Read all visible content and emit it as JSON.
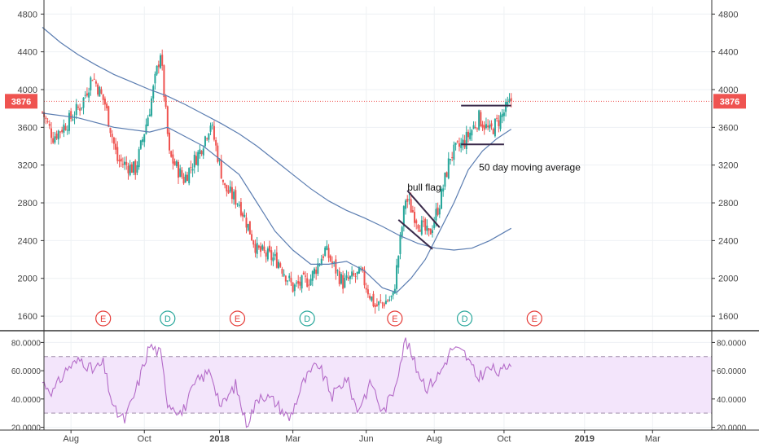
{
  "chart_data": {
    "type": "candlestick",
    "price_panel": {
      "yticks": [
        1600,
        2000,
        2400,
        2800,
        3200,
        3600,
        4000,
        4400,
        4800
      ],
      "ylim": [
        1480,
        4880
      ],
      "last_price": 3876,
      "last_price_label": "3876",
      "keypoints": [
        {
          "t": 0,
          "p": 3760
        },
        {
          "t": 6,
          "p": 3500
        },
        {
          "t": 14,
          "p": 3650
        },
        {
          "t": 22,
          "p": 3850
        },
        {
          "t": 28,
          "p": 4150
        },
        {
          "t": 35,
          "p": 3850
        },
        {
          "t": 42,
          "p": 3250
        },
        {
          "t": 52,
          "p": 3150
        },
        {
          "t": 60,
          "p": 3800
        },
        {
          "t": 66,
          "p": 4400
        },
        {
          "t": 71,
          "p": 3300
        },
        {
          "t": 79,
          "p": 3050
        },
        {
          "t": 88,
          "p": 3350
        },
        {
          "t": 94,
          "p": 3650
        },
        {
          "t": 102,
          "p": 2950
        },
        {
          "t": 110,
          "p": 2800
        },
        {
          "t": 120,
          "p": 2300
        },
        {
          "t": 132,
          "p": 2180
        },
        {
          "t": 140,
          "p": 1900
        },
        {
          "t": 150,
          "p": 2000
        },
        {
          "t": 158,
          "p": 2300
        },
        {
          "t": 168,
          "p": 1950
        },
        {
          "t": 178,
          "p": 2050
        },
        {
          "t": 186,
          "p": 1700
        },
        {
          "t": 196,
          "p": 1800
        },
        {
          "t": 203,
          "p": 2850
        },
        {
          "t": 210,
          "p": 2600
        },
        {
          "t": 216,
          "p": 2450
        },
        {
          "t": 222,
          "p": 2800
        },
        {
          "t": 228,
          "p": 3300
        },
        {
          "t": 236,
          "p": 3450
        },
        {
          "t": 244,
          "p": 3700
        },
        {
          "t": 250,
          "p": 3550
        },
        {
          "t": 256,
          "p": 3700
        },
        {
          "t": 262,
          "p": 3880
        }
      ],
      "ma50": [
        {
          "t": 0,
          "p": 3750
        },
        {
          "t": 20,
          "p": 3700
        },
        {
          "t": 40,
          "p": 3600
        },
        {
          "t": 60,
          "p": 3550
        },
        {
          "t": 70,
          "p": 3600
        },
        {
          "t": 80,
          "p": 3500
        },
        {
          "t": 90,
          "p": 3400
        },
        {
          "t": 100,
          "p": 3250
        },
        {
          "t": 110,
          "p": 3100
        },
        {
          "t": 120,
          "p": 2800
        },
        {
          "t": 130,
          "p": 2500
        },
        {
          "t": 140,
          "p": 2300
        },
        {
          "t": 150,
          "p": 2150
        },
        {
          "t": 160,
          "p": 2150
        },
        {
          "t": 170,
          "p": 2180
        },
        {
          "t": 180,
          "p": 2080
        },
        {
          "t": 190,
          "p": 1900
        },
        {
          "t": 198,
          "p": 1850
        },
        {
          "t": 206,
          "p": 2000
        },
        {
          "t": 214,
          "p": 2200
        },
        {
          "t": 222,
          "p": 2500
        },
        {
          "t": 230,
          "p": 2800
        },
        {
          "t": 238,
          "p": 3150
        },
        {
          "t": 246,
          "p": 3350
        },
        {
          "t": 254,
          "p": 3480
        },
        {
          "t": 262,
          "p": 3580
        }
      ],
      "ma200": [
        {
          "t": 0,
          "p": 4660
        },
        {
          "t": 10,
          "p": 4500
        },
        {
          "t": 20,
          "p": 4370
        },
        {
          "t": 30,
          "p": 4260
        },
        {
          "t": 40,
          "p": 4160
        },
        {
          "t": 50,
          "p": 4080
        },
        {
          "t": 60,
          "p": 4000
        },
        {
          "t": 70,
          "p": 3930
        },
        {
          "t": 80,
          "p": 3840
        },
        {
          "t": 90,
          "p": 3740
        },
        {
          "t": 100,
          "p": 3640
        },
        {
          "t": 110,
          "p": 3530
        },
        {
          "t": 120,
          "p": 3400
        },
        {
          "t": 130,
          "p": 3250
        },
        {
          "t": 140,
          "p": 3100
        },
        {
          "t": 150,
          "p": 2950
        },
        {
          "t": 160,
          "p": 2820
        },
        {
          "t": 170,
          "p": 2720
        },
        {
          "t": 180,
          "p": 2640
        },
        {
          "t": 190,
          "p": 2550
        },
        {
          "t": 200,
          "p": 2450
        },
        {
          "t": 210,
          "p": 2370
        },
        {
          "t": 220,
          "p": 2320
        },
        {
          "t": 230,
          "p": 2300
        },
        {
          "t": 240,
          "p": 2320
        },
        {
          "t": 250,
          "p": 2400
        },
        {
          "t": 262,
          "p": 2530
        }
      ],
      "event_markers": [
        {
          "label": "E",
          "t": 34,
          "kind": "earnings",
          "color": "#e53935"
        },
        {
          "label": "D",
          "t": 70,
          "kind": "dividend",
          "color": "#26a69a"
        },
        {
          "label": "E",
          "t": 109,
          "kind": "earnings",
          "color": "#e53935"
        },
        {
          "label": "D",
          "t": 148,
          "kind": "dividend",
          "color": "#26a69a"
        },
        {
          "label": "E",
          "t": 197,
          "kind": "earnings",
          "color": "#e53935"
        },
        {
          "label": "D",
          "t": 236,
          "kind": "dividend",
          "color": "#26a69a"
        },
        {
          "label": "E",
          "t": 275,
          "kind": "earnings",
          "color": "#e53935"
        }
      ],
      "annotations": [
        {
          "text": "bull flag",
          "t": 204,
          "p": 2930
        },
        {
          "text": "50 day moving average",
          "t": 244,
          "p": 3140
        }
      ],
      "trendlines": [
        {
          "t1": 204,
          "p1": 2930,
          "t2": 222,
          "p2": 2540
        },
        {
          "t1": 199,
          "p1": 2620,
          "t2": 218,
          "p2": 2310
        },
        {
          "t1": 234,
          "p1": 3830,
          "t2": 262,
          "p2": 3830
        },
        {
          "t1": 234,
          "p1": 3420,
          "t2": 258,
          "p2": 3420
        }
      ]
    },
    "rsi_panel": {
      "yticks": [
        20,
        40,
        60,
        80
      ],
      "tick_labels": [
        "20.0000",
        "40.0000",
        "60.0000",
        "80.0000"
      ],
      "ylim": [
        18,
        86
      ],
      "band": [
        30,
        70
      ],
      "keypoints": [
        {
          "t": 0,
          "v": 52
        },
        {
          "t": 6,
          "v": 45
        },
        {
          "t": 14,
          "v": 62
        },
        {
          "t": 22,
          "v": 68
        },
        {
          "t": 28,
          "v": 60
        },
        {
          "t": 34,
          "v": 65
        },
        {
          "t": 40,
          "v": 32
        },
        {
          "t": 46,
          "v": 25
        },
        {
          "t": 52,
          "v": 45
        },
        {
          "t": 60,
          "v": 78
        },
        {
          "t": 66,
          "v": 72
        },
        {
          "t": 70,
          "v": 38
        },
        {
          "t": 78,
          "v": 30
        },
        {
          "t": 86,
          "v": 52
        },
        {
          "t": 94,
          "v": 60
        },
        {
          "t": 100,
          "v": 34
        },
        {
          "t": 108,
          "v": 50
        },
        {
          "t": 114,
          "v": 22
        },
        {
          "t": 122,
          "v": 44
        },
        {
          "t": 130,
          "v": 38
        },
        {
          "t": 138,
          "v": 26
        },
        {
          "t": 146,
          "v": 52
        },
        {
          "t": 154,
          "v": 65
        },
        {
          "t": 162,
          "v": 42
        },
        {
          "t": 170,
          "v": 55
        },
        {
          "t": 176,
          "v": 32
        },
        {
          "t": 184,
          "v": 52
        },
        {
          "t": 190,
          "v": 30
        },
        {
          "t": 196,
          "v": 45
        },
        {
          "t": 203,
          "v": 82
        },
        {
          "t": 209,
          "v": 62
        },
        {
          "t": 215,
          "v": 48
        },
        {
          "t": 222,
          "v": 58
        },
        {
          "t": 229,
          "v": 76
        },
        {
          "t": 236,
          "v": 72
        },
        {
          "t": 243,
          "v": 55
        },
        {
          "t": 250,
          "v": 62
        },
        {
          "t": 256,
          "v": 58
        },
        {
          "t": 262,
          "v": 67
        }
      ]
    },
    "x_axis": {
      "labels": [
        {
          "text": "Aug",
          "t": 16,
          "bold": false
        },
        {
          "text": "Oct",
          "t": 57,
          "bold": false
        },
        {
          "text": "2018",
          "t": 99,
          "bold": true
        },
        {
          "text": "Mar",
          "t": 140,
          "bold": false
        },
        {
          "text": "Jun",
          "t": 181,
          "bold": false
        },
        {
          "text": "Aug",
          "t": 219,
          "bold": false
        },
        {
          "text": "Oct",
          "t": 258,
          "bold": false
        },
        {
          "text": "2019",
          "t": 303,
          "bold": true
        },
        {
          "text": "Mar",
          "t": 341,
          "bold": false
        }
      ],
      "t_range": [
        0,
        375
      ]
    },
    "colors": {
      "up": "#26a69a",
      "down": "#ef5350",
      "ma": "#5b7db1",
      "rsi_line": "#b46bc8",
      "rsi_band": "#f3e5fb",
      "last_price": "#ef5350",
      "grid": "#eef1f4",
      "trendline": "#3a2a4a"
    }
  }
}
